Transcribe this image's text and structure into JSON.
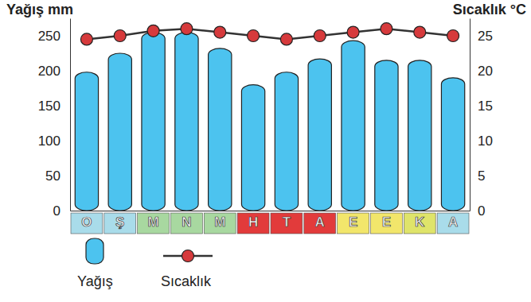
{
  "chart_data": {
    "type": "bar",
    "y_label": "Yağış mm",
    "y2_label": "Sıcaklık °C",
    "categories": [
      "O",
      "Ş",
      "M",
      "N",
      "M",
      "H",
      "T",
      "A",
      "E",
      "E",
      "K",
      "A"
    ],
    "series": [
      {
        "name": "Yağış",
        "type": "bar",
        "color": "#4cc3ef",
        "values": [
          198,
          225,
          255,
          255,
          232,
          180,
          198,
          217,
          243,
          215,
          215,
          190
        ]
      },
      {
        "name": "Sıcaklık",
        "type": "line",
        "axis": "y2",
        "color": "#d63a3c",
        "marker": "circle",
        "values": [
          24.5,
          25,
          25.7,
          26,
          25.5,
          25,
          24.5,
          25,
          25.5,
          26,
          25.5,
          25
        ]
      }
    ],
    "ylim": [
      0,
      275
    ],
    "yticks": [
      0,
      50,
      100,
      150,
      200,
      250
    ],
    "y2lim": [
      0,
      27.5
    ],
    "y2ticks": [
      0,
      5,
      10,
      15,
      20,
      25
    ],
    "grid": false,
    "legend": "bottom-left"
  }
}
